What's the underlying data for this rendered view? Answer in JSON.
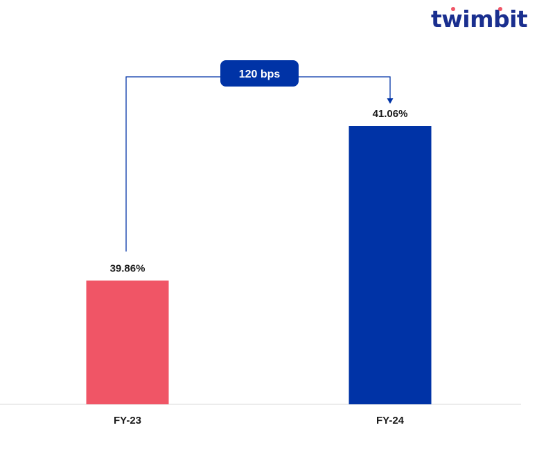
{
  "brand": {
    "logo_text": "twimbit",
    "logo_color": "#1a2f8f",
    "accent_color": "#f05566"
  },
  "chart_data": {
    "type": "bar",
    "categories": [
      "FY-23",
      "FY-24"
    ],
    "values": [
      39.86,
      41.06
    ],
    "value_labels": [
      "39.86%",
      "41.06%"
    ],
    "colors": [
      "#f05566",
      "#0033a6"
    ],
    "title": "",
    "xlabel": "",
    "ylabel": "",
    "annotation": {
      "label": "120 bps",
      "from": "FY-23",
      "to": "FY-24",
      "color": "#0033a6"
    },
    "axis_line_color": "#d9d9d9",
    "grid": false
  }
}
